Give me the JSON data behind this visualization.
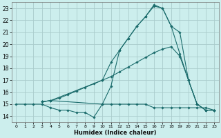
{
  "background_color": "#cceeed",
  "grid_color": "#aacccc",
  "line_color": "#1a6b6b",
  "xlabel": "Humidex (Indice chaleur)",
  "ylim": [
    13.5,
    23.5
  ],
  "xlim": [
    -0.5,
    23.5
  ],
  "yticks": [
    14,
    15,
    16,
    17,
    18,
    19,
    20,
    21,
    22,
    23
  ],
  "xticks": [
    0,
    1,
    2,
    3,
    4,
    5,
    6,
    7,
    8,
    9,
    10,
    11,
    12,
    13,
    14,
    15,
    16,
    17,
    18,
    19,
    20,
    21,
    22,
    23
  ],
  "series": [
    {
      "x": [
        0,
        1,
        2,
        3,
        4,
        5,
        6,
        7,
        8,
        9,
        10,
        11,
        12,
        13,
        14,
        15,
        16,
        17,
        18,
        19,
        20,
        21,
        22,
        23
      ],
      "y": [
        15,
        15,
        15,
        15,
        14.7,
        14.5,
        14.5,
        14.3,
        14.3,
        13.9,
        15,
        15,
        15,
        15,
        15,
        15,
        14.7,
        14.7,
        14.7,
        14.7,
        14.7,
        14.7,
        14.7,
        14.5
      ]
    },
    {
      "x": [
        3,
        4,
        5,
        6,
        7,
        8,
        9,
        10,
        11,
        12,
        13,
        14,
        15,
        16,
        17,
        18,
        19,
        20,
        21,
        22,
        23
      ],
      "y": [
        15.2,
        15.3,
        15.5,
        15.8,
        16.1,
        16.4,
        16.7,
        17.0,
        17.3,
        17.7,
        18.1,
        18.5,
        18.9,
        19.3,
        19.6,
        19.8,
        19.0,
        17.0,
        15.0,
        14.5,
        14.5
      ]
    },
    {
      "x": [
        3,
        4,
        10,
        11,
        12,
        13,
        14,
        15,
        16,
        17,
        18,
        19,
        20,
        21,
        22,
        23
      ],
      "y": [
        15.2,
        15.3,
        17.0,
        18.5,
        19.5,
        20.5,
        21.5,
        22.3,
        23.2,
        23.0,
        21.5,
        19.2,
        17.0,
        15.0,
        14.5,
        14.5
      ]
    },
    {
      "x": [
        3,
        4,
        10,
        11,
        12,
        13,
        14,
        15,
        16,
        17,
        18,
        19,
        20,
        21,
        22,
        23
      ],
      "y": [
        15.2,
        15.3,
        15.0,
        16.5,
        19.5,
        20.5,
        21.5,
        22.3,
        23.3,
        23.0,
        21.5,
        21.0,
        17.0,
        15.0,
        14.5,
        14.5
      ]
    }
  ]
}
